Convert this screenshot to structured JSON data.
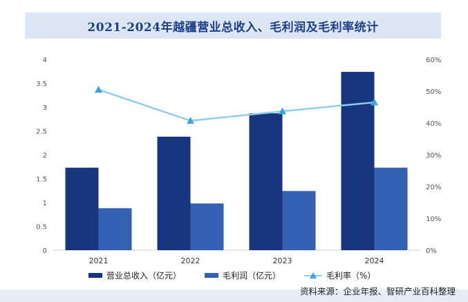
{
  "title": "2021-2024年越疆营业总收入、毛利润及毛利率统计",
  "source": "资料来源：企业年报、智研产业百科整理",
  "colors": {
    "revenue": "#17367f",
    "profit": "#3461b4",
    "margin_line": "#8fcdec",
    "margin_marker": "#3aa7e0"
  },
  "chart_data": {
    "type": "bar",
    "categories": [
      "2021",
      "2022",
      "2023",
      "2024"
    ],
    "series": [
      {
        "name": "营业总收入（亿元）",
        "kind": "bar",
        "axis": "left",
        "values": [
          1.73,
          2.38,
          2.87,
          3.74
        ]
      },
      {
        "name": "毛利润（亿元）",
        "kind": "bar",
        "axis": "left",
        "values": [
          0.88,
          0.98,
          1.24,
          1.73
        ]
      },
      {
        "name": "毛利率（%）",
        "kind": "line",
        "axis": "right",
        "values": [
          50.5,
          40.7,
          43.7,
          46.5
        ]
      }
    ],
    "left_axis": {
      "min": 0,
      "max": 4,
      "ticks": [
        "0",
        "0.5",
        "1",
        "1.5",
        "2",
        "2.5",
        "3",
        "3.5",
        "4"
      ]
    },
    "right_axis": {
      "min": 0,
      "max": 60,
      "ticks": [
        "0%",
        "10%",
        "20%",
        "30%",
        "40%",
        "50%",
        "60%"
      ]
    },
    "legend_position": "bottom"
  }
}
